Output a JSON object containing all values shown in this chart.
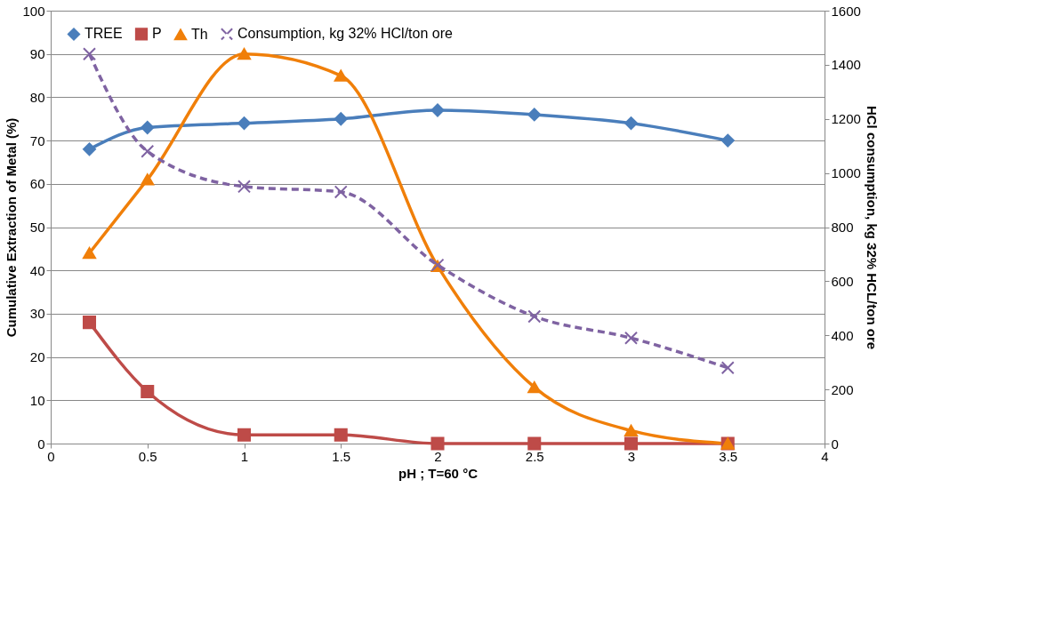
{
  "chart_data": {
    "type": "line",
    "xlabel": "pH ; T=60 °C",
    "ylabel": "Cumulative Extraction of Metal (%)",
    "y2label": "HCl consumption, kg 32% HCL/ton ore",
    "x": [
      0.2,
      0.5,
      1,
      1.5,
      2,
      2.5,
      3,
      3.5
    ],
    "series": [
      {
        "name": "TREE",
        "color": "#4a7ebb",
        "marker": "diamond",
        "line_style": "solid",
        "values": [
          68,
          73,
          74,
          75,
          77,
          76,
          74,
          70
        ]
      },
      {
        "name": "P",
        "color": "#be4b48",
        "marker": "square",
        "line_style": "solid",
        "values": [
          28,
          12,
          2,
          2,
          0,
          0,
          0,
          0
        ]
      },
      {
        "name": "Th",
        "color": "#f07f09",
        "marker": "triangle",
        "line_style": "solid",
        "values": [
          44,
          61,
          90,
          85,
          41,
          13,
          3,
          0
        ]
      },
      {
        "name": "Consumption, kg 32% HCl/ton ore",
        "color": "#7f63a2",
        "marker": "cross",
        "line_style": "dashed",
        "axis": "y2",
        "values": [
          1440,
          1080,
          950,
          930,
          660,
          470,
          390,
          280
        ]
      }
    ],
    "xlim": [
      0,
      4
    ],
    "xticks": [
      0,
      0.5,
      1,
      1.5,
      2,
      2.5,
      3,
      3.5,
      4
    ],
    "ylim": [
      0,
      100
    ],
    "yticks": [
      0,
      10,
      20,
      30,
      40,
      50,
      60,
      70,
      80,
      90,
      100
    ],
    "y2lim": [
      0,
      1600
    ],
    "y2ticks": [
      0,
      200,
      400,
      600,
      800,
      1000,
      1200,
      1400,
      1600
    ],
    "grid": "y",
    "legend": "top left"
  }
}
